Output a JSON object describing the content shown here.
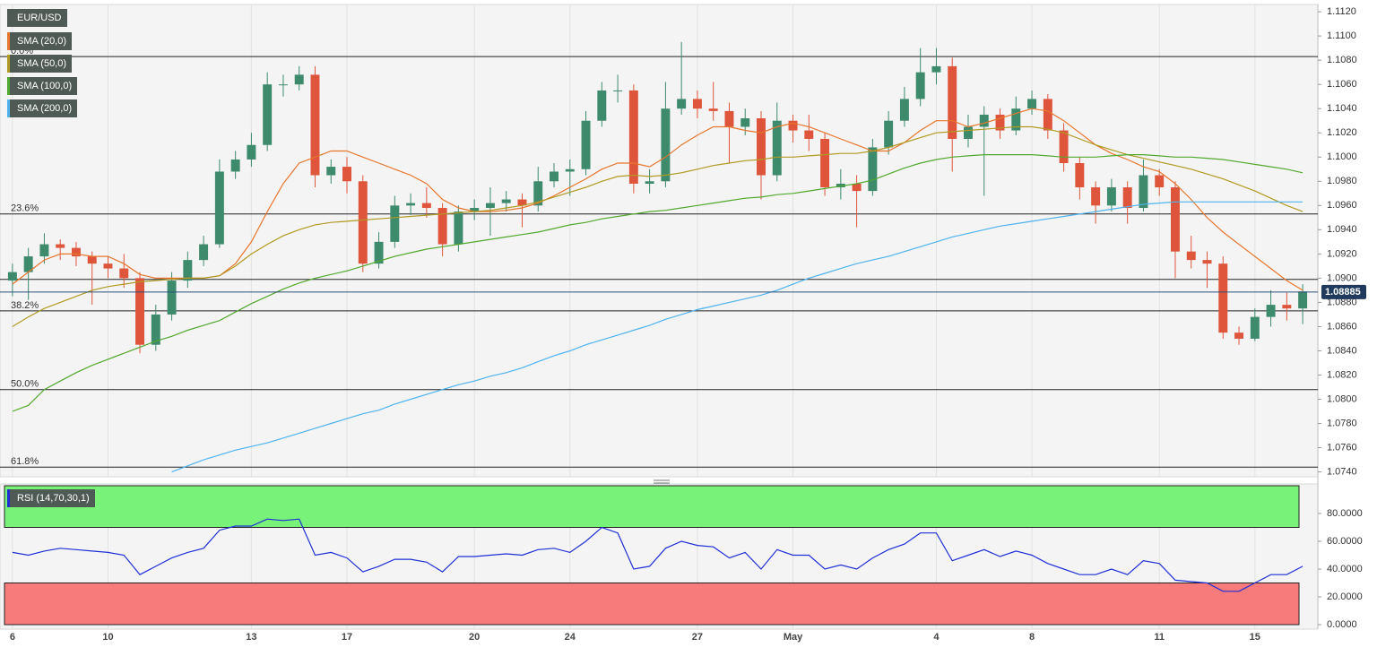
{
  "chart_data": [
    {
      "type": "candlestick",
      "title": "EUR/USD",
      "categories": [
        "6",
        null,
        null,
        null,
        null,
        null,
        "10",
        null,
        null,
        null,
        null,
        null,
        null,
        null,
        null,
        "13",
        null,
        null,
        null,
        null,
        null,
        "17",
        null,
        null,
        null,
        null,
        null,
        null,
        null,
        "20",
        null,
        null,
        null,
        null,
        null,
        "24",
        null,
        null,
        null,
        null,
        null,
        null,
        null,
        "27",
        null,
        null,
        null,
        null,
        null,
        "May",
        null,
        null,
        null,
        null,
        null,
        null,
        null,
        null,
        "4",
        null,
        null,
        null,
        null,
        null,
        "8",
        null,
        null,
        null,
        null,
        null,
        null,
        null,
        "11",
        null,
        null,
        null,
        null,
        null,
        "15",
        null,
        null,
        null
      ],
      "open": [
        1.0898,
        1.0905,
        1.0918,
        1.0928,
        1.0925,
        1.0918,
        1.0912,
        1.0908,
        1.09,
        1.0845,
        1.087,
        1.0898,
        1.0915,
        1.0928,
        1.0988,
        1.0998,
        1.101,
        1.106,
        1.106,
        1.1068,
        1.0985,
        1.0992,
        1.098,
        1.0912,
        1.093,
        1.096,
        1.0962,
        1.0958,
        1.0928,
        1.0955,
        1.0958,
        1.0962,
        1.0965,
        1.096,
        1.098,
        1.0988,
        1.099,
        1.103,
        1.1055,
        1.1055,
        1.0978,
        1.098,
        1.104,
        1.1048,
        1.104,
        1.1038,
        1.1025,
        1.1032,
        1.0985,
        1.103,
        1.1022,
        1.1015,
        1.0975,
        1.0978,
        1.0972,
        1.1008,
        1.103,
        1.1048,
        1.107,
        1.1075,
        1.1015,
        1.1025,
        1.1035,
        1.1022,
        1.104,
        1.1048,
        1.1022,
        1.0995,
        1.0975,
        1.096,
        1.0975,
        1.0958,
        1.0985,
        1.0975,
        1.0922,
        1.0915,
        1.0912,
        1.0855,
        1.085,
        1.0868,
        1.0878,
        1.0875
      ],
      "high": [
        1.0912,
        1.0925,
        1.0937,
        1.0932,
        1.093,
        1.0922,
        1.0918,
        1.092,
        1.0905,
        1.0878,
        1.0905,
        1.0922,
        1.0935,
        1.0998,
        1.1005,
        1.102,
        1.107,
        1.1068,
        1.1075,
        1.1075,
        1.0998,
        1.1,
        1.0985,
        1.0938,
        1.0968,
        1.097,
        1.0975,
        1.0962,
        1.096,
        1.0965,
        1.0975,
        1.0972,
        1.097,
        1.0992,
        1.0995,
        1.0998,
        1.1038,
        1.1062,
        1.1068,
        1.106,
        1.099,
        1.1062,
        1.1095,
        1.1055,
        1.1062,
        1.1045,
        1.104,
        1.1038,
        1.1045,
        1.1035,
        1.1035,
        1.102,
        1.099,
        1.0985,
        1.1015,
        1.1038,
        1.1058,
        1.109,
        1.109,
        1.1082,
        1.1035,
        1.1042,
        1.104,
        1.105,
        1.1055,
        1.1052,
        1.1028,
        1.1,
        1.098,
        1.0982,
        1.098,
        1.0998,
        1.099,
        1.098,
        1.0935,
        1.0922,
        1.0918,
        1.086,
        1.0875,
        1.089,
        1.0888,
        1.0895
      ],
      "low": [
        1.0885,
        1.0882,
        1.0912,
        1.0915,
        1.091,
        1.0878,
        1.09,
        1.0892,
        1.0838,
        1.084,
        1.0865,
        1.0892,
        1.091,
        1.0925,
        1.0982,
        1.0992,
        1.1005,
        1.105,
        1.1055,
        1.0975,
        1.0978,
        1.097,
        1.0905,
        1.0908,
        1.0925,
        1.0952,
        1.095,
        1.0918,
        1.0922,
        1.0948,
        1.0935,
        1.0955,
        1.0942,
        1.0955,
        1.0975,
        1.0968,
        1.0985,
        1.1025,
        1.1045,
        1.097,
        1.097,
        1.0975,
        1.1035,
        1.1032,
        1.103,
        1.0995,
        1.1018,
        1.0965,
        1.098,
        1.1012,
        1.1005,
        1.0968,
        1.0965,
        1.0942,
        1.0968,
        1.1002,
        1.1025,
        1.1042,
        1.106,
        1.0988,
        1.1008,
        1.0968,
        1.1015,
        1.1018,
        1.1035,
        1.1015,
        1.0988,
        1.0965,
        1.0945,
        1.0955,
        1.0945,
        1.0955,
        1.0968,
        1.09,
        1.0908,
        1.0892,
        1.085,
        1.0845,
        1.0848,
        1.086,
        1.0865,
        1.0862
      ],
      "close": [
        1.0905,
        1.0918,
        1.0928,
        1.0925,
        1.0918,
        1.0912,
        1.0908,
        1.09,
        1.0845,
        1.087,
        1.0898,
        1.0915,
        1.0928,
        1.0988,
        1.0998,
        1.101,
        1.106,
        1.106,
        1.1068,
        1.0985,
        1.0992,
        1.098,
        1.0912,
        1.093,
        1.096,
        1.0962,
        1.0958,
        1.0928,
        1.0955,
        1.0958,
        1.0962,
        1.0965,
        1.096,
        1.098,
        1.0988,
        1.099,
        1.103,
        1.1055,
        1.1055,
        1.0978,
        1.098,
        1.104,
        1.1048,
        1.104,
        1.1038,
        1.1025,
        1.1032,
        1.0985,
        1.103,
        1.1022,
        1.1015,
        1.0975,
        1.0978,
        1.0972,
        1.1008,
        1.103,
        1.1048,
        1.107,
        1.1075,
        1.1015,
        1.1025,
        1.1035,
        1.1022,
        1.104,
        1.1048,
        1.1022,
        1.0995,
        1.0975,
        1.096,
        1.0975,
        1.0958,
        1.0985,
        1.0975,
        1.0922,
        1.0915,
        1.0912,
        1.0855,
        1.085,
        1.0868,
        1.0878,
        1.0875,
        1.0889
      ],
      "up_color": "#3d8a6c",
      "down_color": "#de553c",
      "series": [
        {
          "name": "SMA (20,0)",
          "color": "#e8762d",
          "values": [
            1.0895,
            1.0905,
            1.0915,
            1.092,
            1.092,
            1.0918,
            1.0918,
            1.0912,
            1.0903,
            1.09,
            1.09,
            1.09,
            1.09,
            1.0902,
            1.0912,
            1.093,
            1.0955,
            1.0978,
            1.0995,
            1.1,
            1.1005,
            1.1005,
            1.1,
            1.0995,
            1.099,
            1.0985,
            1.0978,
            1.0965,
            1.0958,
            1.0955,
            1.0955,
            1.0956,
            1.0958,
            1.0962,
            1.0968,
            1.0975,
            1.0982,
            1.099,
            1.0995,
            1.0995,
            1.0992,
            1.1,
            1.101,
            1.1018,
            1.1025,
            1.1025,
            1.1022,
            1.102,
            1.1025,
            1.1028,
            1.1025,
            1.102,
            1.1015,
            1.101,
            1.1005,
            1.1005,
            1.1012,
            1.1022,
            1.103,
            1.103,
            1.1025,
            1.1028,
            1.1032,
            1.1036,
            1.104,
            1.1038,
            1.103,
            1.102,
            1.101,
            1.1003,
            1.0998,
            1.0992,
            1.0988,
            1.0978,
            1.0965,
            1.095,
            1.0938,
            1.0928,
            1.0918,
            1.0908,
            1.0898,
            1.089
          ]
        },
        {
          "name": "SMA (50,0)",
          "color": "#b09a22",
          "values": [
            1.086,
            1.0868,
            1.0875,
            1.088,
            1.0885,
            1.089,
            1.0893,
            1.0895,
            1.0897,
            1.0898,
            1.0899,
            1.09,
            1.09,
            1.0902,
            1.091,
            1.092,
            1.0928,
            1.0935,
            1.094,
            1.0944,
            1.0946,
            1.0947,
            1.0948,
            1.0949,
            1.095,
            1.0951,
            1.0952,
            1.0953,
            1.0954,
            1.0955,
            1.0956,
            1.0958,
            1.096,
            1.0963,
            1.0967,
            1.0971,
            1.0975,
            1.098,
            1.0984,
            1.0985,
            1.0984,
            1.0985,
            1.0987,
            1.099,
            1.0993,
            1.0995,
            1.0997,
            1.0998,
            1.1,
            1.1,
            1.1001,
            1.1002,
            1.1003,
            1.1003,
            1.1005,
            1.1008,
            1.1012,
            1.1016,
            1.102,
            1.1021,
            1.1022,
            1.1023,
            1.1024,
            1.1025,
            1.1025,
            1.1023,
            1.102,
            1.1015,
            1.101,
            1.1006,
            1.1002,
            1.0999,
            1.0996,
            1.0993,
            1.099,
            1.0986,
            1.0982,
            1.0977,
            1.0972,
            1.0966,
            1.096,
            1.0955
          ]
        },
        {
          "name": "SMA (100,0)",
          "color": "#52a82e",
          "values": [
            1.079,
            1.0795,
            1.0808,
            1.0815,
            1.0822,
            1.0828,
            1.0833,
            1.0838,
            1.0843,
            1.0848,
            1.0852,
            1.0857,
            1.0861,
            1.0865,
            1.0872,
            1.0879,
            1.0885,
            1.0891,
            1.0896,
            1.09,
            1.0903,
            1.0906,
            1.091,
            1.0914,
            1.0918,
            1.0921,
            1.0924,
            1.0926,
            1.0928,
            1.093,
            1.0932,
            1.0934,
            1.0936,
            1.0938,
            1.0941,
            1.0944,
            1.0946,
            1.0949,
            1.0951,
            1.0953,
            1.0955,
            1.0956,
            1.0958,
            1.096,
            1.0962,
            1.0964,
            1.0966,
            1.0967,
            1.0969,
            1.097,
            1.0972,
            1.0974,
            1.0976,
            1.0978,
            1.0981,
            1.0986,
            1.0991,
            1.0995,
            1.0998,
            1.1,
            1.1001,
            1.1002,
            1.1002,
            1.1002,
            1.1002,
            1.1001,
            1.1,
            1.1,
            1.1,
            1.1001,
            1.1002,
            1.1002,
            1.1001,
            1.1,
            1.1,
            1.0999,
            1.0998,
            1.0996,
            1.0994,
            1.0992,
            1.099,
            1.0987
          ]
        },
        {
          "name": "SMA (200,0)",
          "color": "#4fb3ef",
          "values": [
            null,
            null,
            null,
            null,
            null,
            null,
            null,
            null,
            null,
            null,
            1.074,
            1.0745,
            1.075,
            1.0754,
            1.0758,
            1.0761,
            1.0764,
            1.0768,
            1.0772,
            1.0776,
            1.078,
            1.0784,
            1.0788,
            1.0791,
            1.0796,
            1.08,
            1.0804,
            1.0808,
            1.0812,
            1.0815,
            1.0819,
            1.0822,
            1.0826,
            1.0831,
            1.0836,
            1.084,
            1.0845,
            1.0849,
            1.0853,
            1.0857,
            1.0861,
            1.0866,
            1.087,
            1.0874,
            1.0877,
            1.088,
            1.0883,
            1.0886,
            1.089,
            1.0895,
            1.09,
            1.0904,
            1.0908,
            1.0912,
            1.0915,
            1.0918,
            1.0922,
            1.0926,
            1.093,
            1.0934,
            1.0937,
            1.094,
            1.0943,
            1.0945,
            1.0947,
            1.0949,
            1.0951,
            1.0953,
            1.0955,
            1.0957,
            1.0959,
            1.0961,
            1.0962,
            1.0963,
            1.0963,
            1.0963,
            1.0963,
            1.0963,
            1.0963,
            1.0963,
            1.0963,
            1.0963
          ]
        }
      ],
      "levels": [
        {
          "label": "0.0%",
          "value": 1.1083
        },
        {
          "label": "23.6%",
          "value": 1.0953
        },
        {
          "label": "38.2%",
          "value": 1.0873
        },
        {
          "label": "50.0%",
          "value": 1.0808
        },
        {
          "label": "61.8%",
          "value": 1.0744
        }
      ],
      "hlines": [
        1.0899
      ],
      "last_price": 1.08885,
      "ylim": [
        1.0736,
        1.1126
      ],
      "yticks": [
        {
          "value": 1.112,
          "label": "1.1120"
        },
        {
          "value": 1.11,
          "label": "1.1100"
        },
        {
          "value": 1.108,
          "label": "1.1080"
        },
        {
          "value": 1.106,
          "label": "1.1060"
        },
        {
          "value": 1.104,
          "label": "1.1040"
        },
        {
          "value": 1.102,
          "label": "1.1020"
        },
        {
          "value": 1.1,
          "label": "1.1000"
        },
        {
          "value": 1.098,
          "label": "1.0980"
        },
        {
          "value": 1.096,
          "label": "1.0960"
        },
        {
          "value": 1.094,
          "label": "1.0940"
        },
        {
          "value": 1.092,
          "label": "1.0920"
        },
        {
          "value": 1.09,
          "label": "1.0900"
        },
        {
          "value": 1.088,
          "label": "1.0880"
        },
        {
          "value": 1.086,
          "label": "1.0860"
        },
        {
          "value": 1.084,
          "label": "1.0840"
        },
        {
          "value": 1.082,
          "label": "1.0820"
        },
        {
          "value": 1.08,
          "label": "1.0800"
        },
        {
          "value": 1.078,
          "label": "1.0780"
        },
        {
          "value": 1.076,
          "label": "1.0760"
        },
        {
          "value": 1.074,
          "label": "1.0740"
        }
      ]
    },
    {
      "type": "line",
      "series": [
        {
          "name": "RSI (14,70,30,1)",
          "color": "#1f2fd6",
          "values": [
            52,
            50,
            53,
            55,
            54,
            53,
            52,
            50,
            36,
            42,
            48,
            52,
            55,
            68,
            71,
            71,
            76,
            75,
            76,
            50,
            52,
            48,
            38,
            42,
            47,
            47,
            45,
            38,
            49,
            49,
            50,
            51,
            50,
            54,
            55,
            52,
            60,
            70,
            66,
            40,
            42,
            55,
            60,
            57,
            56,
            48,
            52,
            40,
            54,
            50,
            50,
            40,
            43,
            40,
            48,
            54,
            58,
            66,
            66,
            46,
            50,
            54,
            49,
            53,
            50,
            44,
            40,
            36,
            36,
            40,
            36,
            46,
            44,
            32,
            31,
            30,
            24,
            24,
            30,
            36,
            36,
            42
          ]
        }
      ],
      "zones": [
        {
          "from": 70,
          "to": 100,
          "color": "#78f278"
        },
        {
          "from": 0,
          "to": 30,
          "color": "#f77b7b"
        }
      ],
      "ylim": [
        0,
        100
      ],
      "yticks": [
        {
          "value": 80,
          "label": "80.0000"
        },
        {
          "value": 60,
          "label": "60.0000"
        },
        {
          "value": 40,
          "label": "40.0000"
        },
        {
          "value": 20,
          "label": "20.0000"
        },
        {
          "value": 0,
          "label": "0.0000"
        }
      ]
    }
  ]
}
